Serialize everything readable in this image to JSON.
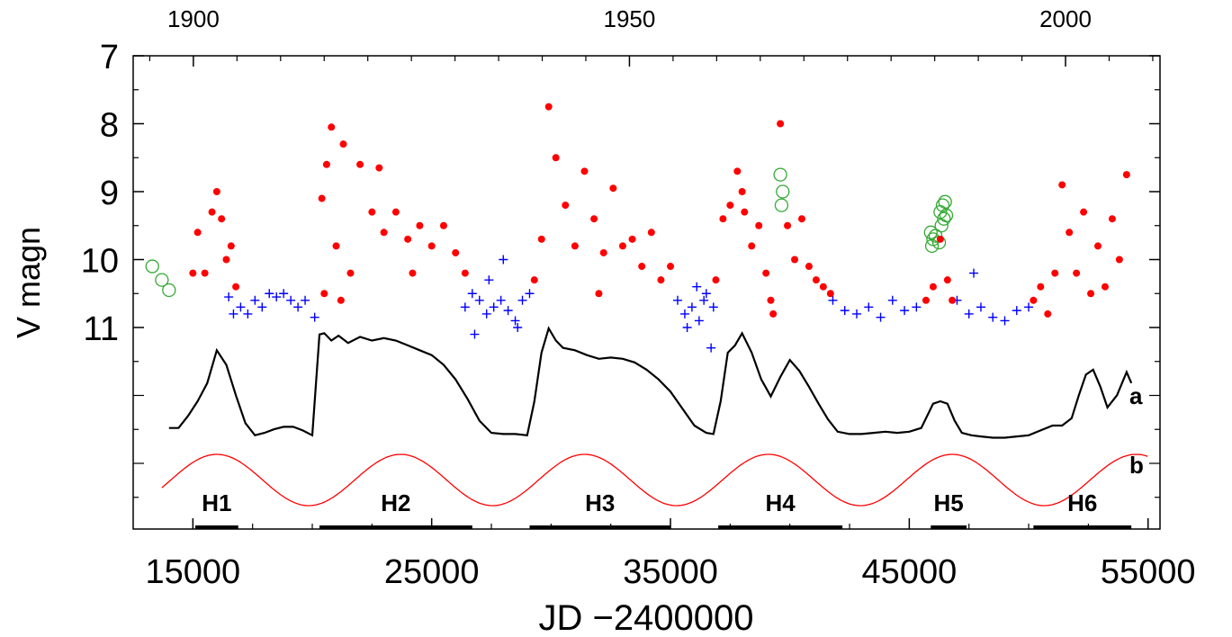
{
  "chart_data": {
    "type": "scatter",
    "title": "",
    "xlabel": "JD −2400000",
    "ylabel": "V magn",
    "xlim": [
      12500,
      55500
    ],
    "ylim": [
      7,
      11
    ],
    "y_inverted": true,
    "x_ticks": [
      15000,
      25000,
      35000,
      45000,
      55000
    ],
    "y_ticks": [
      7,
      8,
      9,
      10,
      11
    ],
    "top_axis": {
      "ticks": [
        {
          "label": "1900",
          "jd": 15020
        },
        {
          "label": "1950",
          "jd": 33282
        },
        {
          "label": "2000",
          "jd": 51544
        }
      ]
    },
    "colors": {
      "red": "#ff0000",
      "blue": "#0000ff",
      "green": "#33aa33",
      "black": "#000000"
    },
    "series": [
      {
        "marker": "open-circle",
        "color": "#33aa33",
        "x": [
          13300,
          13700,
          14000,
          39600,
          39700,
          39650,
          45900,
          46000,
          45950,
          46100,
          46300,
          46400,
          46500,
          46350,
          46450,
          46550,
          46250
        ],
        "y": [
          10.1,
          10.3,
          10.45,
          8.75,
          9.0,
          9.2,
          9.6,
          9.7,
          9.8,
          9.65,
          9.3,
          9.2,
          9.15,
          9.5,
          9.4,
          9.35,
          9.75
        ]
      },
      {
        "marker": "plus",
        "color": "#0000ff",
        "x": [
          16500,
          16700,
          17000,
          17300,
          17600,
          17900,
          18200,
          18500,
          18800,
          19100,
          19400,
          19700,
          20100,
          26400,
          26700,
          27000,
          27300,
          27600,
          27900,
          28200,
          28500,
          28800,
          29100,
          26800,
          27400,
          28000,
          28600,
          35300,
          35600,
          35900,
          36200,
          36500,
          36800,
          35700,
          36100,
          36400,
          36700,
          41800,
          42300,
          42800,
          43300,
          43800,
          44300,
          44800,
          45300,
          47000,
          47500,
          48000,
          48500,
          49000,
          49500,
          50000,
          47700
        ],
        "y": [
          10.55,
          10.8,
          10.7,
          10.8,
          10.6,
          10.7,
          10.5,
          10.55,
          10.5,
          10.6,
          10.7,
          10.6,
          10.85,
          10.7,
          10.5,
          10.6,
          10.8,
          10.7,
          10.6,
          10.75,
          10.9,
          10.6,
          10.5,
          11.1,
          10.3,
          10.0,
          11.0,
          10.6,
          10.8,
          10.7,
          10.9,
          10.5,
          10.7,
          11.0,
          10.4,
          10.6,
          11.3,
          10.6,
          10.75,
          10.8,
          10.7,
          10.85,
          10.6,
          10.75,
          10.7,
          10.6,
          10.8,
          10.7,
          10.85,
          10.9,
          10.75,
          10.7,
          10.2
        ]
      },
      {
        "marker": "filled-circle",
        "color": "#ff0000",
        "x": [
          15000,
          15200,
          15500,
          15800,
          16000,
          16200,
          16400,
          16600,
          16800,
          20400,
          20600,
          20800,
          21000,
          21300,
          21600,
          22000,
          22500,
          23000,
          23500,
          24000,
          24500,
          25000,
          25500,
          26000,
          26400,
          20500,
          21200,
          22800,
          24200,
          29300,
          29600,
          29900,
          30200,
          30600,
          31000,
          31400,
          31800,
          32200,
          32600,
          33000,
          33400,
          33800,
          34200,
          34600,
          35000,
          32000,
          36900,
          37200,
          37500,
          37800,
          38100,
          38400,
          38700,
          39000,
          39300,
          39600,
          39900,
          40200,
          40500,
          40800,
          41100,
          41400,
          41700,
          38000,
          39200,
          45700,
          46000,
          46300,
          46600,
          46800,
          50200,
          50500,
          50800,
          51100,
          51400,
          51700,
          52000,
          52300,
          52600,
          52900,
          53200,
          53500,
          53800,
          54100
        ],
        "y": [
          10.2,
          9.6,
          10.2,
          9.3,
          9.0,
          9.4,
          10.0,
          9.8,
          10.4,
          9.1,
          8.6,
          8.05,
          9.8,
          8.3,
          10.2,
          8.6,
          9.3,
          9.6,
          9.3,
          9.7,
          9.5,
          9.8,
          9.5,
          9.9,
          10.2,
          10.5,
          10.6,
          8.65,
          10.2,
          10.3,
          9.7,
          7.75,
          8.5,
          9.2,
          9.8,
          8.7,
          9.4,
          9.9,
          8.95,
          9.8,
          9.7,
          10.1,
          9.6,
          10.3,
          10.1,
          10.5,
          10.3,
          9.4,
          9.2,
          8.7,
          9.3,
          9.8,
          9.5,
          10.2,
          10.8,
          8.0,
          9.5,
          10.0,
          9.4,
          10.1,
          10.3,
          10.4,
          10.5,
          9.0,
          10.6,
          10.6,
          10.4,
          9.7,
          10.3,
          10.6,
          10.6,
          10.4,
          10.8,
          10.2,
          8.9,
          9.6,
          10.2,
          9.3,
          10.5,
          9.8,
          10.4,
          9.4,
          10.0,
          8.75
        ]
      }
    ],
    "curves": [
      {
        "name": "a",
        "color": "#000000",
        "x": [
          14000,
          14400,
          14800,
          15200,
          15600,
          16000,
          16400,
          16800,
          17200,
          17600,
          18000,
          18400,
          18800,
          19200,
          19600,
          20000,
          20300,
          20500,
          20800,
          21100,
          21500,
          22000,
          22500,
          23000,
          23500,
          24000,
          24500,
          25000,
          25500,
          26000,
          26500,
          27000,
          27500,
          28000,
          28500,
          29000,
          29300,
          29600,
          29900,
          30200,
          30500,
          31000,
          31500,
          32000,
          32500,
          33000,
          33500,
          34000,
          34500,
          35000,
          35500,
          36000,
          36500,
          36800,
          37100,
          37400,
          37700,
          38000,
          38400,
          38800,
          39200,
          39600,
          40000,
          40400,
          40800,
          41200,
          41600,
          42000,
          42500,
          43000,
          43500,
          44000,
          44500,
          45000,
          45500,
          46000,
          46300,
          46600,
          46900,
          47200,
          47600,
          48000,
          48500,
          49000,
          49500,
          50000,
          50500,
          51000,
          51400,
          51800,
          52100,
          52400,
          52700,
          53000,
          53300,
          53700,
          54100,
          54300
        ],
        "rel": [
          0.82,
          0.82,
          0.72,
          0.6,
          0.45,
          0.18,
          0.3,
          0.55,
          0.78,
          0.88,
          0.86,
          0.83,
          0.81,
          0.81,
          0.84,
          0.88,
          0.05,
          0.04,
          0.1,
          0.06,
          0.12,
          0.07,
          0.1,
          0.08,
          0.1,
          0.14,
          0.18,
          0.22,
          0.3,
          0.42,
          0.58,
          0.76,
          0.86,
          0.87,
          0.87,
          0.88,
          0.6,
          0.2,
          0.0,
          0.1,
          0.16,
          0.18,
          0.22,
          0.25,
          0.24,
          0.25,
          0.28,
          0.34,
          0.42,
          0.52,
          0.66,
          0.8,
          0.86,
          0.87,
          0.6,
          0.2,
          0.14,
          0.04,
          0.2,
          0.42,
          0.56,
          0.4,
          0.26,
          0.35,
          0.48,
          0.62,
          0.75,
          0.85,
          0.87,
          0.87,
          0.86,
          0.85,
          0.86,
          0.85,
          0.82,
          0.62,
          0.6,
          0.62,
          0.76,
          0.86,
          0.88,
          0.89,
          0.9,
          0.9,
          0.89,
          0.88,
          0.84,
          0.8,
          0.8,
          0.74,
          0.55,
          0.38,
          0.34,
          0.48,
          0.65,
          0.55,
          0.36,
          0.45
        ]
      },
      {
        "name": "b",
        "color": "#ff0000",
        "type": "sine",
        "x_start": 13700,
        "x_end": 55000,
        "period": 7700,
        "peak_x": 16000
      }
    ],
    "labeled_intervals": [
      {
        "label": "H1",
        "x0": 15100,
        "x1": 16900
      },
      {
        "label": "H2",
        "x0": 20300,
        "x1": 26700
      },
      {
        "label": "H3",
        "x0": 29100,
        "x1": 35000
      },
      {
        "label": "H4",
        "x0": 37000,
        "x1": 42200
      },
      {
        "label": "H5",
        "x0": 45900,
        "x1": 47400
      },
      {
        "label": "H6",
        "x0": 50200,
        "x1": 54300
      }
    ]
  }
}
